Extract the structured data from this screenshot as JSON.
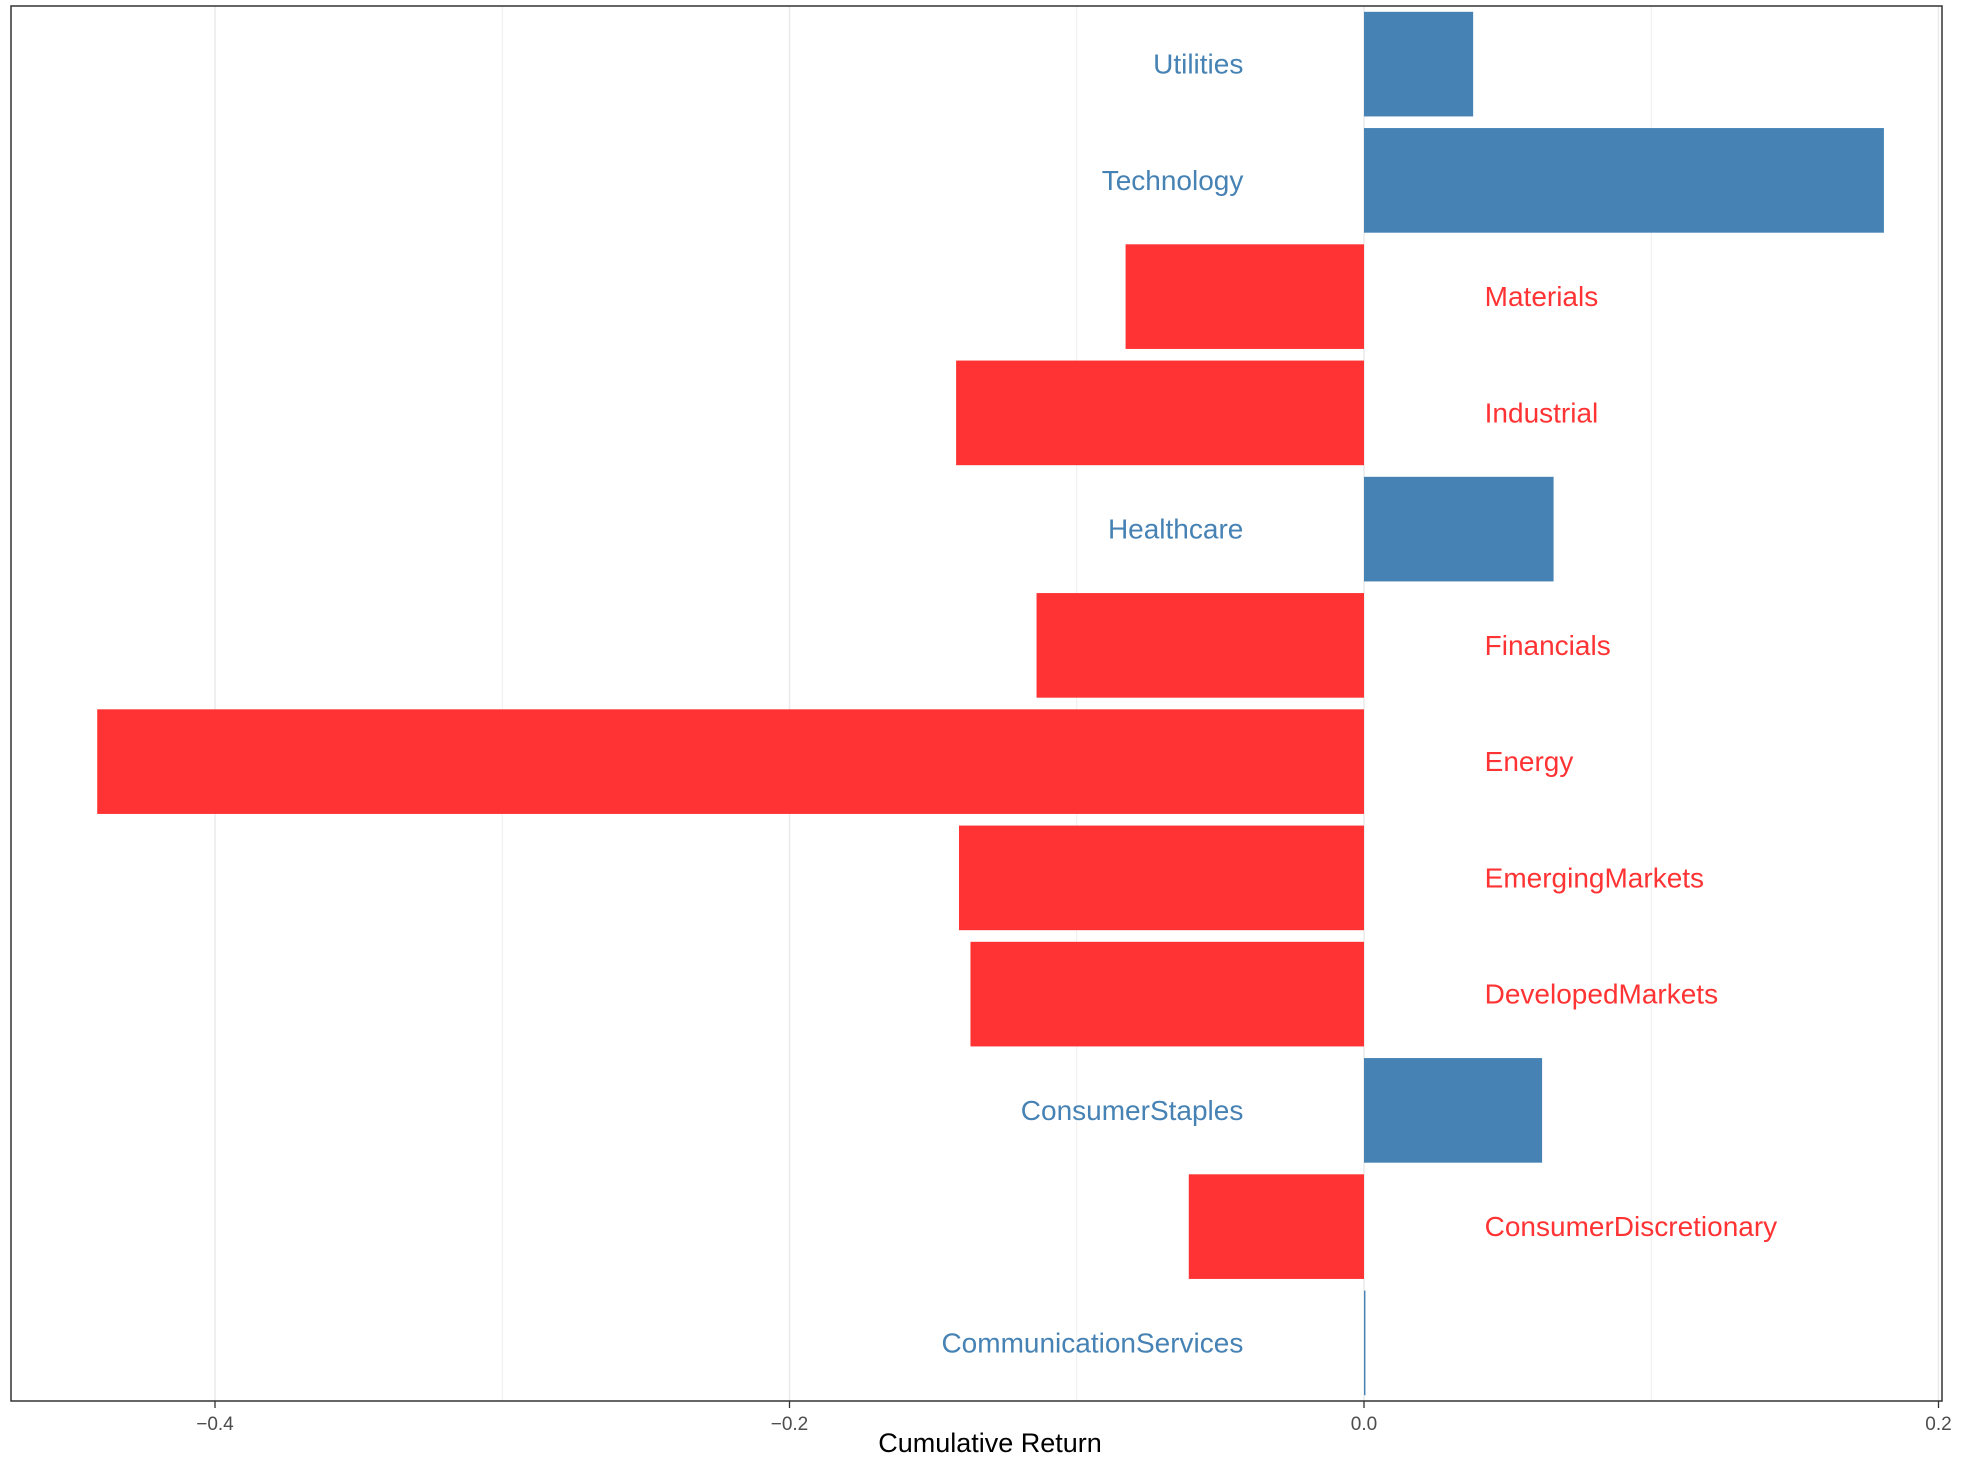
{
  "colors": {
    "positive": "#4682B4",
    "negative": "#FF3333",
    "grid": "#EBEBEB",
    "panel_border": "#333333",
    "background": "#FFFFFF"
  },
  "chart_data": {
    "type": "bar",
    "orientation": "horizontal",
    "title": "",
    "xlabel": "Cumulative Return",
    "ylabel": "",
    "xlim": [
      -0.4458,
      0.2
    ],
    "x_ticks": [
      -0.4,
      -0.2,
      0.0,
      0.2
    ],
    "x_tick_labels": [
      "−0.4",
      "−0.2",
      "0.0",
      "0.2"
    ],
    "grid": true,
    "legend": "none",
    "categories": [
      "Utilities",
      "Technology",
      "Materials",
      "Industrial",
      "Healthcare",
      "Financials",
      "Energy",
      "EmergingMarkets",
      "DevelopedMarkets",
      "ConsumerStaples",
      "ConsumerDiscretionary",
      "CommunicationServices"
    ],
    "values": [
      0.038,
      0.181,
      -0.083,
      -0.142,
      0.066,
      -0.114,
      -0.441,
      -0.141,
      -0.137,
      0.062,
      -0.061,
      0.0005
    ]
  }
}
